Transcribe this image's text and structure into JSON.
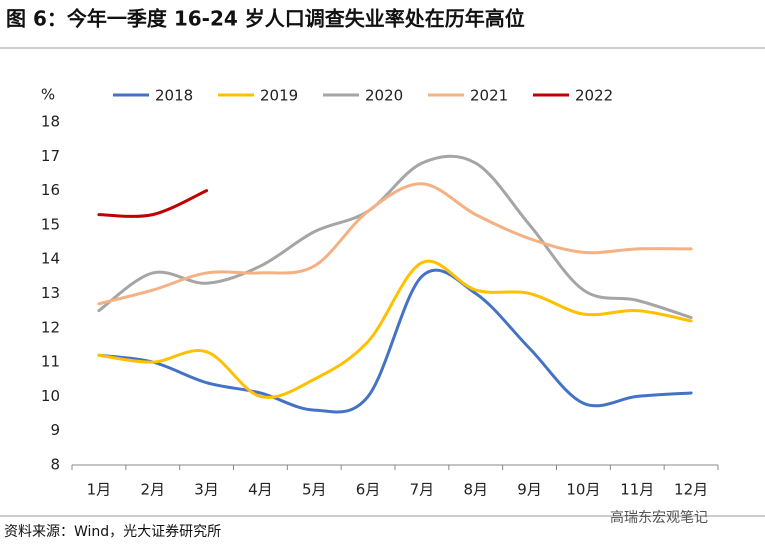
{
  "chart_data": {
    "type": "line",
    "title": "图 6：今年一季度 16-24 岁人口调查失业率处在历年高位",
    "y_label": "%",
    "source": "资料来源：Wind，光大证券研究所",
    "watermark": "高瑞东宏观笔记",
    "categories": [
      "1月",
      "2月",
      "3月",
      "4月",
      "5月",
      "6月",
      "7月",
      "8月",
      "9月",
      "10月",
      "11月",
      "12月"
    ],
    "series": [
      {
        "name": "2018",
        "color": "#4472c4",
        "values": [
          11.2,
          11.0,
          10.4,
          10.1,
          9.6,
          10.0,
          13.5,
          13.0,
          11.4,
          9.8,
          10.0,
          10.1
        ]
      },
      {
        "name": "2019",
        "color": "#ffc000",
        "values": [
          11.2,
          11.0,
          11.3,
          10.0,
          10.5,
          11.6,
          13.9,
          13.1,
          13.0,
          12.4,
          12.5,
          12.2
        ]
      },
      {
        "name": "2020",
        "color": "#a5a5a5",
        "values": [
          12.5,
          13.6,
          13.3,
          13.8,
          14.8,
          15.4,
          16.8,
          16.8,
          15.0,
          13.1,
          12.8,
          12.3
        ]
      },
      {
        "name": "2021",
        "color": "#f4b183",
        "values": [
          12.7,
          13.1,
          13.6,
          13.6,
          13.8,
          15.4,
          16.2,
          15.3,
          14.6,
          14.2,
          14.3,
          14.3
        ]
      },
      {
        "name": "2022",
        "color": "#c00000",
        "values": [
          15.3,
          15.3,
          16.0,
          null,
          null,
          null,
          null,
          null,
          null,
          null,
          null,
          null
        ]
      }
    ],
    "ylim": [
      8,
      18
    ],
    "yticks": [
      8,
      9,
      10,
      11,
      12,
      13,
      14,
      15,
      16,
      17,
      18
    ],
    "grid": false,
    "smooth": true
  }
}
